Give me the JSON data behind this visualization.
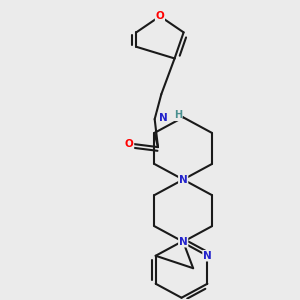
{
  "background_color": "#ebebeb",
  "bond_color": "#1a1a1a",
  "atom_colors": {
    "O": "#ff0000",
    "N": "#2222cc",
    "H": "#4a9090",
    "C": "#1a1a1a"
  },
  "figsize": [
    3.0,
    3.0
  ],
  "dpi": 100
}
